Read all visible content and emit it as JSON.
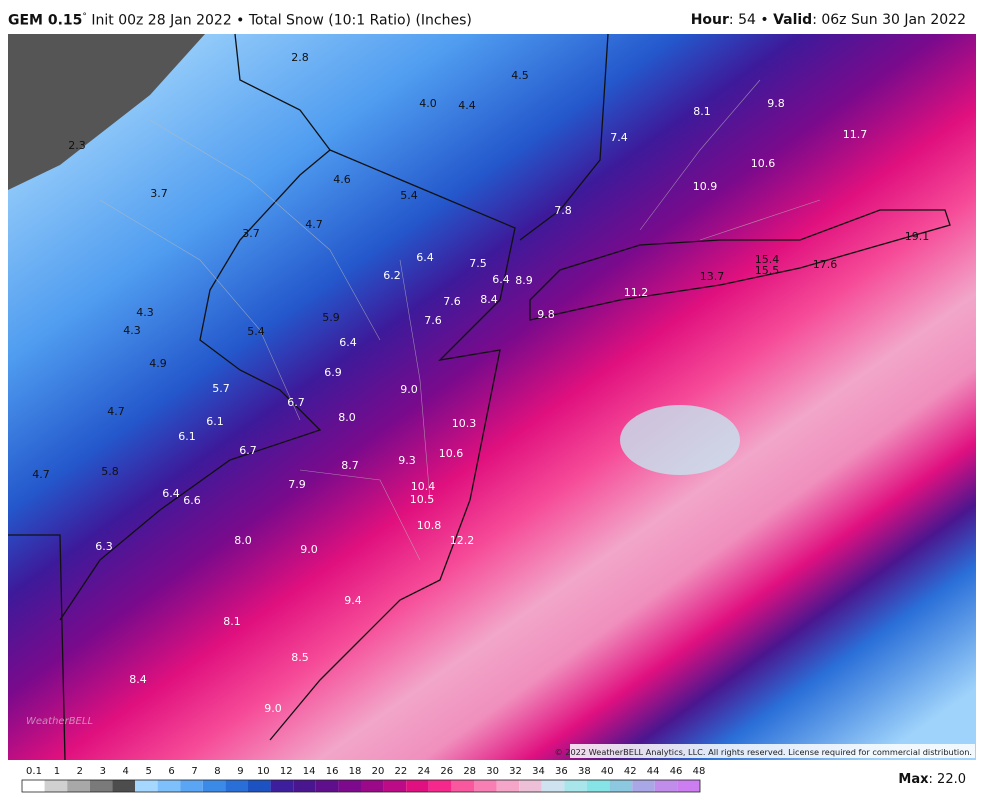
{
  "header": {
    "model": "GEM 0.15",
    "degree": "°",
    "description": "Init 00z 28 Jan 2022 • Total Snow (10:1 Ratio) (Inches)",
    "hour_label": "Hour",
    "hour_value": ": 54 •",
    "valid_label": "Valid",
    "valid_value": ": 06z Sun 30 Jan 2022"
  },
  "map": {
    "labels": [
      "2.8",
      "4.5",
      "4.0",
      "4.4",
      "8.1",
      "9.8",
      "2.3",
      "7.4",
      "11.7",
      "10.6",
      "4.6",
      "3.7",
      "10.9",
      "5.4",
      "7.8",
      "4.7",
      "3.7",
      "19.1",
      "6.4",
      "7.5",
      "15.4",
      "6.2",
      "6.4",
      "8.9",
      "13.7",
      "15.5",
      "17.6",
      "7.6",
      "8.4",
      "11.2",
      "4.3",
      "5.9",
      "7.6",
      "9.8",
      "4.3",
      "5.4",
      "6.4",
      "4.9",
      "6.9",
      "5.7",
      "9.0",
      "6.7",
      "4.7",
      "6.1",
      "8.0",
      "10.3",
      "6.1",
      "6.7",
      "10.6",
      "9.3",
      "8.7",
      "4.7",
      "5.8",
      "7.9",
      "10.4",
      "6.4",
      "6.6",
      "10.5",
      "10.8",
      "12.2",
      "8.0",
      "9.0",
      "6.3",
      "9.4",
      "8.1",
      "8.5",
      "8.4",
      "9.0"
    ],
    "copyright": "© 2022 WeatherBELL Analytics, LLC. All rights reserved. License required for commercial distribution.",
    "watermark": "WeatherBELL"
  },
  "colorbar": {
    "ticks": [
      "0.1",
      "1",
      "2",
      "3",
      "4",
      "5",
      "6",
      "7",
      "8",
      "9",
      "10",
      "12",
      "14",
      "16",
      "18",
      "20",
      "22",
      "24",
      "26",
      "28",
      "30",
      "32",
      "34",
      "36",
      "38",
      "40",
      "42",
      "44",
      "46",
      "48"
    ],
    "colors": [
      "#ffffff",
      "#d0d0d0",
      "#a8a8a8",
      "#7a7a7a",
      "#4d4d4d",
      "#a6d8ff",
      "#7ec0fb",
      "#5aa6f5",
      "#3c8ae8",
      "#2a6fd8",
      "#1c52c2",
      "#3d1f9e",
      "#4a1690",
      "#5f0f8c",
      "#7d0a8c",
      "#9b0888",
      "#bd0a86",
      "#e01080",
      "#f7288c",
      "#f9589f",
      "#f87fb4",
      "#f5a5c8",
      "#eec0d8",
      "#cfe2ef",
      "#a8e6ec",
      "#86e3e6",
      "#8cc9e0",
      "#a9a7e6",
      "#c08eea",
      "#cc7ef0"
    ],
    "max_label": "Max",
    "max_value": ": 22.0"
  }
}
